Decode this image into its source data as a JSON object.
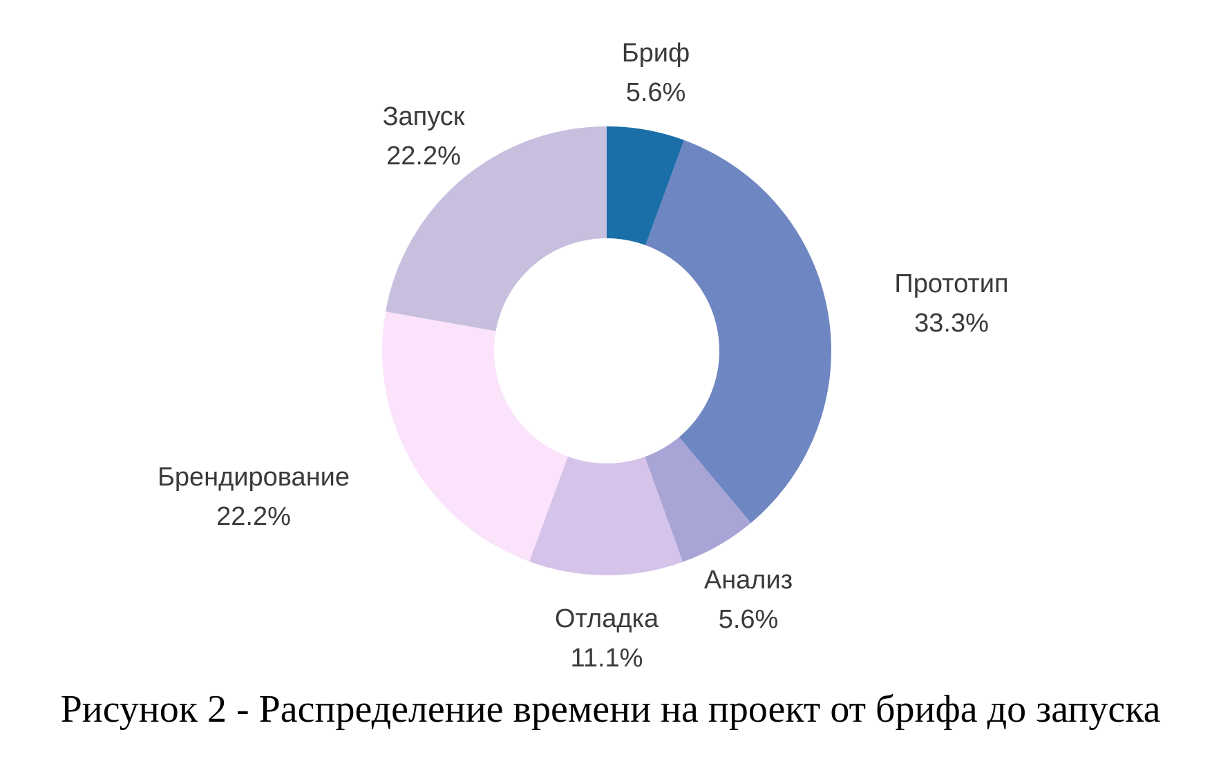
{
  "chart_data": {
    "type": "pie",
    "donut": true,
    "start": "top",
    "direction": "clockwise",
    "categories": [
      "Бриф",
      "Прототип",
      "Анализ",
      "Отладка",
      "Брендирование",
      "Запуск"
    ],
    "values": [
      5.6,
      33.3,
      5.6,
      11.1,
      22.2,
      22.2
    ],
    "value_labels": [
      "5.6%",
      "33.3%",
      "5.6%",
      "11.1%",
      "22.2%",
      "22.2%"
    ],
    "colors": [
      "#1a6fa8",
      "#6e86c1",
      "#a8a4d6",
      "#d6c3ea",
      "#fae3fb",
      "#c8bfdf"
    ],
    "title": "Рисунок 2 - Распределение времени на проект от брифа до запуска"
  }
}
